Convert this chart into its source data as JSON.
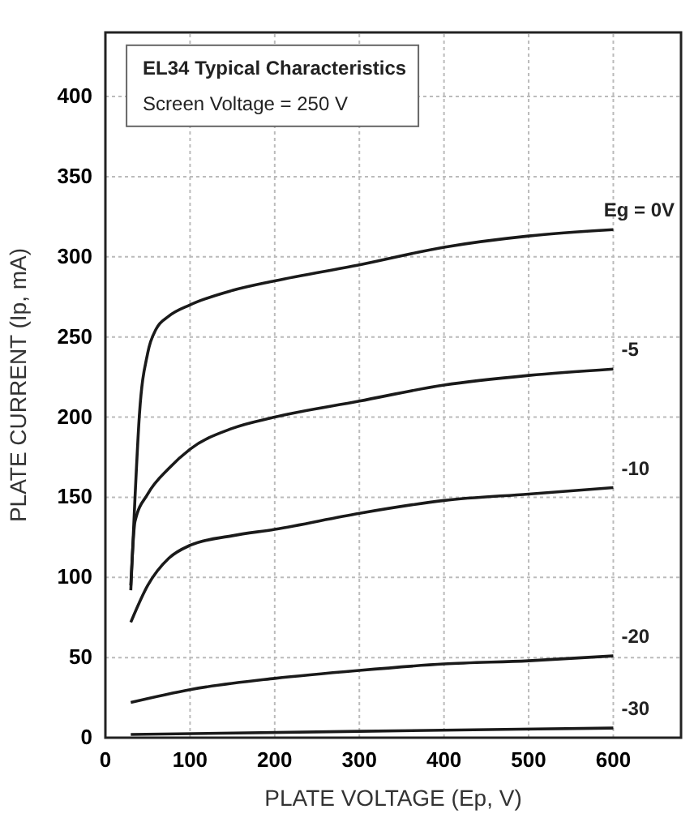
{
  "chart_data": {
    "type": "line",
    "xlabel": "PLATE  VOLTAGE (Ep, V)",
    "ylabel": "PLATE CURRENT (Ip, mA)",
    "annotations": [
      "EL34 Typical Characteristics",
      "Screen Voltage = 250 V"
    ],
    "xlim": [
      0,
      680
    ],
    "ylim": [
      0,
      440
    ],
    "xticks": [
      0,
      100,
      200,
      300,
      400,
      500,
      600
    ],
    "yticks": [
      0,
      50,
      100,
      150,
      200,
      250,
      300,
      350,
      400
    ],
    "grid": true,
    "marker": "none",
    "line_style": "solid",
    "series": [
      {
        "name": "Eg = 0V",
        "color": "#1a1a1a",
        "x": [
          30,
          35,
          40,
          50,
          60,
          75,
          100,
          150,
          200,
          300,
          400,
          500,
          600
        ],
        "values": [
          92,
          150,
          200,
          240,
          255,
          263,
          270,
          279,
          285,
          295,
          306,
          313,
          317
        ]
      },
      {
        "name": "-5",
        "color": "#1a1a1a",
        "x": [
          30,
          35,
          50,
          75,
          100,
          150,
          200,
          300,
          400,
          500,
          600
        ],
        "values": [
          95,
          135,
          152,
          168,
          180,
          193,
          200,
          210,
          220,
          226,
          230
        ]
      },
      {
        "name": "-10",
        "color": "#1a1a1a",
        "x": [
          30,
          50,
          75,
          100,
          150,
          200,
          300,
          400,
          500,
          600
        ],
        "values": [
          72,
          95,
          112,
          120,
          126,
          130,
          140,
          148,
          152,
          156
        ]
      },
      {
        "name": "-20",
        "color": "#1a1a1a",
        "x": [
          30,
          100,
          200,
          300,
          400,
          500,
          600
        ],
        "values": [
          22,
          30,
          37,
          42,
          46,
          48,
          51
        ]
      },
      {
        "name": "-30",
        "color": "#1a1a1a",
        "x": [
          30,
          300,
          600
        ],
        "values": [
          2,
          4,
          6
        ]
      }
    ]
  }
}
